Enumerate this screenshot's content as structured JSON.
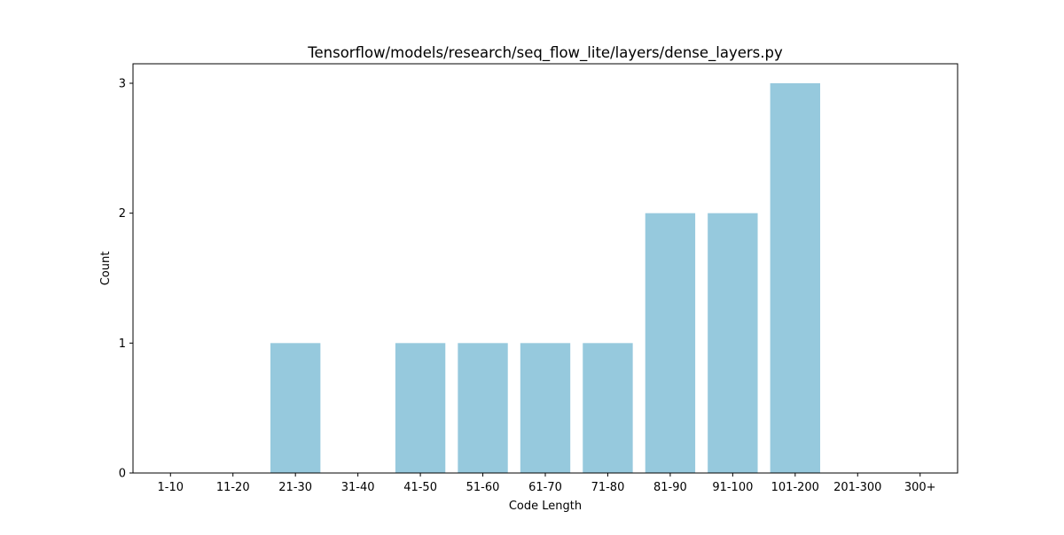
{
  "chart_data": {
    "type": "bar",
    "title": "Tensorflow/models/research/seq_flow_lite/layers/dense_layers.py",
    "xlabel": "Code Length",
    "ylabel": "Count",
    "categories": [
      "1-10",
      "11-20",
      "21-30",
      "31-40",
      "41-50",
      "51-60",
      "61-70",
      "71-80",
      "81-90",
      "91-100",
      "101-200",
      "201-300",
      "300+"
    ],
    "values": [
      0,
      0,
      1,
      0,
      1,
      1,
      1,
      1,
      2,
      2,
      3,
      0,
      0
    ],
    "ylim": [
      0,
      3.15
    ],
    "yticks": [
      0,
      1,
      2,
      3
    ],
    "grid": false,
    "legend": "none",
    "colors": {
      "bar": "#96c9dd",
      "axis": "#000000",
      "background": "#ffffff"
    }
  }
}
